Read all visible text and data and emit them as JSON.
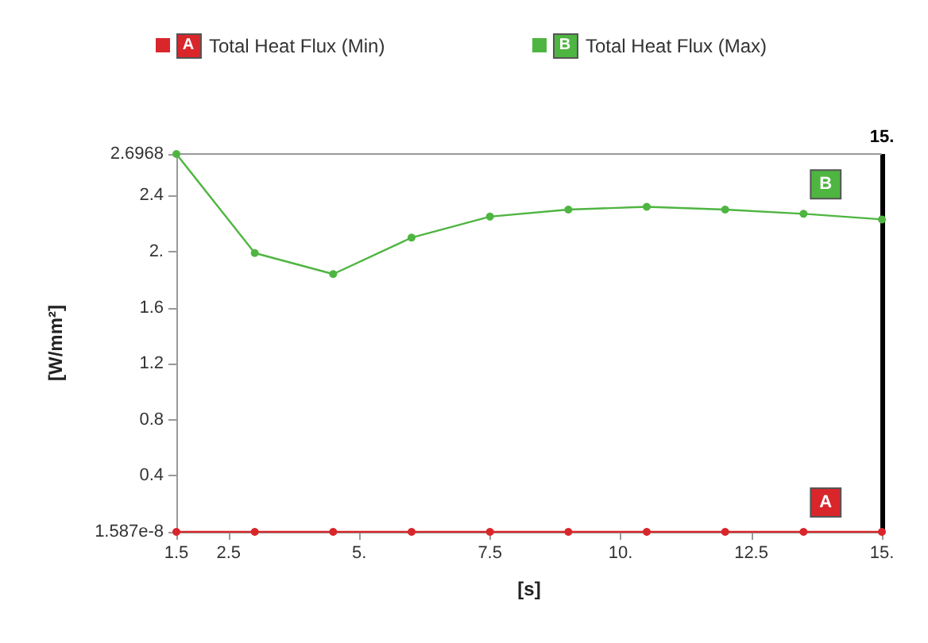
{
  "chart_data": {
    "type": "line",
    "xlabel": "[s]",
    "ylabel": "[W/mm²]",
    "x": [
      1.5,
      3.0,
      4.5,
      6.0,
      7.5,
      9.0,
      10.5,
      12.0,
      13.5,
      15.0
    ],
    "series": [
      {
        "name": "Total Heat Flux (Min)",
        "color": "#d9262b",
        "values": [
          1.587e-08,
          1.587e-08,
          1.587e-08,
          1.587e-08,
          1.587e-08,
          1.587e-08,
          1.587e-08,
          1.587e-08,
          1.587e-08,
          1.587e-08
        ]
      },
      {
        "name": "Total Heat Flux (Max)",
        "color": "#4fb541",
        "values": [
          2.6968,
          1.99,
          1.84,
          2.1,
          2.25,
          2.3,
          2.32,
          2.3,
          2.27,
          2.23
        ]
      }
    ],
    "xlim": [
      1.5,
      15
    ],
    "xticks": [
      1.5,
      2.5,
      {
        "value": 5,
        "label": "5."
      },
      7.5,
      {
        "value": 10,
        "label": "10."
      },
      12.5,
      {
        "value": 15,
        "label": "15."
      }
    ],
    "ylim": [
      1.587e-08,
      2.6968
    ],
    "yticks": [
      {
        "value": 1.587e-08,
        "label": "1.587e-8"
      },
      0.4,
      0.8,
      1.2,
      1.6,
      {
        "value": 2,
        "label": "2."
      },
      2.4,
      2.6968
    ],
    "ref_lines": [
      {
        "axis": "x",
        "value": 15,
        "label": "15.",
        "color": "#000000"
      }
    ],
    "annotations": [
      {
        "text": "A",
        "x": 13.5,
        "y": 1.587e-08
      },
      {
        "text": "B",
        "x": 13.5,
        "y": 2.27
      }
    ],
    "grid": false,
    "legend": "top",
    "marker": "circle",
    "line_style": "solid"
  }
}
